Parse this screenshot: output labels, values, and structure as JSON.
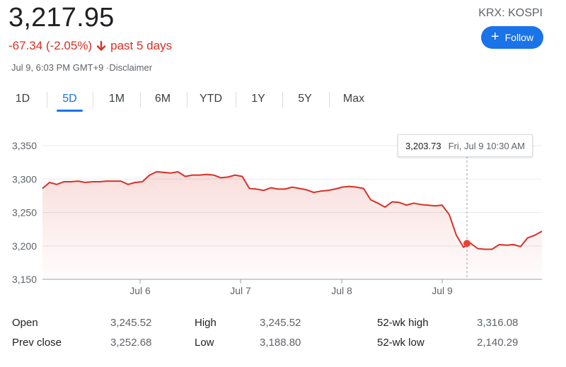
{
  "header": {
    "price": "3,217.95",
    "change": "-67.34 (-2.05%)",
    "period": "past 5 days",
    "timestamp": "Jul 9, 6:03 PM GMT+9 ·Disclaimer",
    "exchange": "KRX: KOSPI",
    "follow_label": "Follow",
    "change_color": "#d93025",
    "accent_color": "#1a73e8"
  },
  "tabs": [
    {
      "label": "1D"
    },
    {
      "label": "5D",
      "active": true
    },
    {
      "label": "1M"
    },
    {
      "label": "6M"
    },
    {
      "label": "YTD"
    },
    {
      "label": "1Y"
    },
    {
      "label": "5Y"
    },
    {
      "label": "Max"
    }
  ],
  "tooltip": {
    "value": "3,203.73",
    "time": "Fri, Jul 9 10:30 AM"
  },
  "chart_data": {
    "type": "area",
    "ylim": [
      3150,
      3350
    ],
    "yticks": [
      3350,
      3300,
      3250,
      3200,
      3150
    ],
    "ytick_labels": [
      "3,350",
      "3,300",
      "3,250",
      "3,200",
      "3,150"
    ],
    "xtick_labels": [
      "Jul 6",
      "Jul 7",
      "Jul 8",
      "Jul 9"
    ],
    "series": [
      {
        "color": "#d93025",
        "values": [
          3286,
          3295,
          3292,
          3296,
          3296,
          3297,
          3295,
          3296,
          3296,
          3297,
          3297,
          3297,
          3292,
          3295,
          3296,
          3306,
          3311,
          3310,
          3309,
          3311,
          3304,
          3306,
          3306,
          3307,
          3306,
          3302,
          3303,
          3306,
          3304,
          3286,
          3285,
          3283,
          3287,
          3285,
          3285,
          3288,
          3286,
          3284,
          3280,
          3282,
          3283,
          3285,
          3288,
          3289,
          3288,
          3286,
          3269,
          3264,
          3258,
          3266,
          3265,
          3261,
          3264,
          3262,
          3261,
          3260,
          3261,
          3247,
          3216,
          3198,
          3204,
          3196,
          3195,
          3195,
          3202,
          3201,
          3202,
          3199,
          3212,
          3216,
          3222
        ]
      }
    ],
    "marker": {
      "value": 3203.73,
      "label": "Fri, Jul 9 10:30 AM"
    },
    "grid": true
  },
  "stats": {
    "open_label": "Open",
    "open": "3,245.52",
    "prev_close_label": "Prev close",
    "prev_close": "3,252.68",
    "high_label": "High",
    "high": "3,245.52",
    "low_label": "Low",
    "low": "3,188.80",
    "wk52_high_label": "52-wk high",
    "wk52_high": "3,316.08",
    "wk52_low_label": "52-wk low",
    "wk52_low": "2,140.29"
  }
}
